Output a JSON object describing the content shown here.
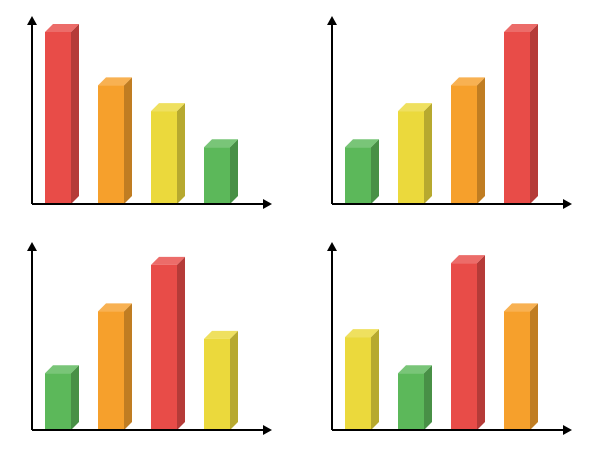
{
  "colors": {
    "red": "#e84c48",
    "orange": "#f6a02c",
    "yellow": "#ebd93c",
    "green": "#5cb85a",
    "axis": "#000000"
  },
  "chart_data": [
    {
      "type": "bar",
      "values": [
        100,
        69,
        54,
        33
      ],
      "colors": [
        "red",
        "orange",
        "yellow",
        "green"
      ],
      "ylim": [
        0,
        100
      ]
    },
    {
      "type": "bar",
      "values": [
        33,
        54,
        69,
        100
      ],
      "colors": [
        "green",
        "yellow",
        "orange",
        "red"
      ],
      "ylim": [
        0,
        100
      ]
    },
    {
      "type": "bar",
      "values": [
        33,
        69,
        96,
        53
      ],
      "colors": [
        "green",
        "orange",
        "red",
        "yellow"
      ],
      "ylim": [
        0,
        100
      ]
    },
    {
      "type": "bar",
      "values": [
        54,
        33,
        97,
        69
      ],
      "colors": [
        "yellow",
        "green",
        "red",
        "orange"
      ],
      "ylim": [
        0,
        100
      ]
    }
  ]
}
